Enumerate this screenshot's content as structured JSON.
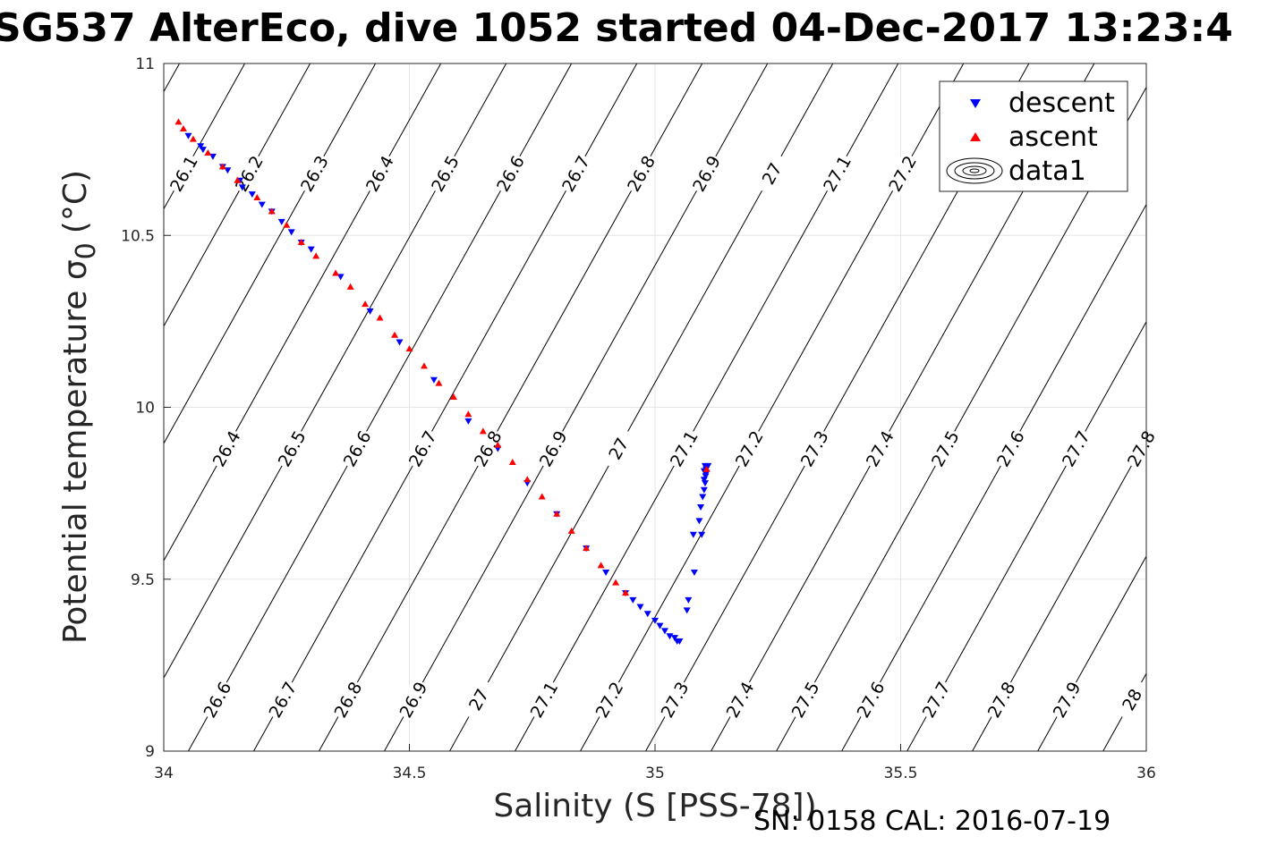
{
  "chart_data": {
    "type": "scatter",
    "title": "SG537 AlterEco, dive 1052 started 04-Dec-2017 13:23:4",
    "xlabel": "Salinity (S [PSS-78])",
    "ylabel": "Potential temperature σ",
    "ylabel_sub": "0",
    "ylabel_unit": "(°C)",
    "xlim": [
      34,
      36
    ],
    "ylim": [
      9,
      11
    ],
    "xticks": [
      34,
      34.5,
      35,
      35.5,
      36
    ],
    "xtick_labels": [
      "34",
      "34.5",
      "35",
      "35.5",
      "36"
    ],
    "yticks": [
      9,
      9.5,
      10,
      10.5,
      11
    ],
    "ytick_labels": [
      "9",
      "9.5",
      "10",
      "10.5",
      "11"
    ],
    "grid": true,
    "legend_position": "top-right",
    "series": [
      {
        "name": "descent",
        "marker": "triangle-down",
        "color": "#0000ff",
        "points": [
          [
            34.05,
            10.79
          ],
          [
            34.075,
            10.76
          ],
          [
            34.08,
            10.75
          ],
          [
            34.1,
            10.73
          ],
          [
            34.12,
            10.7
          ],
          [
            34.13,
            10.69
          ],
          [
            34.155,
            10.66
          ],
          [
            34.16,
            10.64
          ],
          [
            34.18,
            10.62
          ],
          [
            34.2,
            10.59
          ],
          [
            34.22,
            10.57
          ],
          [
            34.24,
            10.54
          ],
          [
            34.26,
            10.51
          ],
          [
            34.28,
            10.48
          ],
          [
            34.3,
            10.46
          ],
          [
            34.36,
            10.38
          ],
          [
            34.42,
            10.28
          ],
          [
            34.48,
            10.19
          ],
          [
            34.55,
            10.08
          ],
          [
            34.62,
            9.96
          ],
          [
            34.68,
            9.88
          ],
          [
            34.74,
            9.78
          ],
          [
            34.8,
            9.69
          ],
          [
            34.86,
            9.59
          ],
          [
            34.9,
            9.52
          ],
          [
            34.94,
            9.46
          ],
          [
            34.955,
            9.44
          ],
          [
            34.97,
            9.42
          ],
          [
            34.985,
            9.4
          ],
          [
            35.0,
            9.38
          ],
          [
            35.01,
            9.365
          ],
          [
            35.02,
            9.35
          ],
          [
            35.03,
            9.335
          ],
          [
            35.04,
            9.33
          ],
          [
            35.045,
            9.32
          ],
          [
            35.05,
            9.32
          ],
          [
            35.065,
            9.41
          ],
          [
            35.068,
            9.44
          ],
          [
            35.08,
            9.52
          ],
          [
            35.078,
            9.63
          ],
          [
            35.095,
            9.63
          ],
          [
            35.09,
            9.67
          ],
          [
            35.093,
            9.71
          ],
          [
            35.097,
            9.74
          ],
          [
            35.1,
            9.76
          ],
          [
            35.102,
            9.78
          ],
          [
            35.1,
            9.79
          ],
          [
            35.103,
            9.8
          ],
          [
            35.105,
            9.81
          ],
          [
            35.104,
            9.82
          ],
          [
            35.108,
            9.83
          ],
          [
            35.102,
            9.83
          ],
          [
            35.1,
            9.815
          ]
        ]
      },
      {
        "name": "ascent",
        "marker": "triangle-up",
        "color": "#ff0000",
        "points": [
          [
            34.03,
            10.83
          ],
          [
            34.04,
            10.81
          ],
          [
            34.06,
            10.78
          ],
          [
            34.09,
            10.74
          ],
          [
            34.12,
            10.7
          ],
          [
            34.15,
            10.66
          ],
          [
            34.19,
            10.61
          ],
          [
            34.22,
            10.57
          ],
          [
            34.25,
            10.53
          ],
          [
            34.28,
            10.48
          ],
          [
            34.31,
            10.44
          ],
          [
            34.35,
            10.39
          ],
          [
            34.38,
            10.35
          ],
          [
            34.41,
            10.3
          ],
          [
            34.44,
            10.26
          ],
          [
            34.47,
            10.21
          ],
          [
            34.5,
            10.17
          ],
          [
            34.53,
            10.12
          ],
          [
            34.56,
            10.07
          ],
          [
            34.59,
            10.03
          ],
          [
            34.62,
            9.98
          ],
          [
            34.65,
            9.93
          ],
          [
            34.68,
            9.89
          ],
          [
            34.71,
            9.84
          ],
          [
            34.74,
            9.79
          ],
          [
            34.77,
            9.74
          ],
          [
            34.8,
            9.69
          ],
          [
            34.83,
            9.64
          ],
          [
            34.86,
            9.59
          ],
          [
            34.89,
            9.54
          ],
          [
            34.92,
            9.49
          ],
          [
            34.94,
            9.46
          ],
          [
            35.105,
            9.82
          ]
        ]
      }
    ],
    "density_contours": {
      "levels": [
        "26.1",
        "26.2",
        "26.3",
        "26.4",
        "26.5",
        "26.6",
        "26.7",
        "26.8",
        "26.9",
        "27",
        "27.1",
        "27.2",
        "27.3",
        "27.4",
        "27.5",
        "27.6",
        "27.7",
        "27.8"
      ],
      "color": "#000000"
    },
    "legend": [
      {
        "label": "descent",
        "marker": "triangle-down",
        "color": "#0000ff"
      },
      {
        "label": "ascent",
        "marker": "triangle-up",
        "color": "#ff0000"
      },
      {
        "label": "data1",
        "marker": "contour",
        "color": "#000000"
      }
    ]
  },
  "footer": "SN: 0158  CAL: 2016-07-19"
}
